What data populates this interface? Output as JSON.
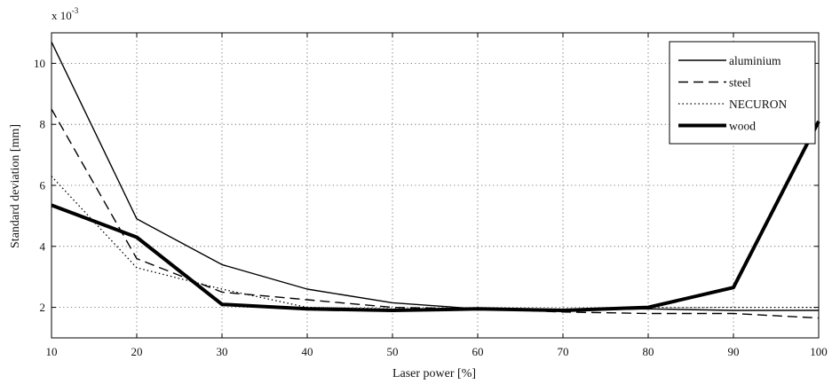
{
  "chart_data": {
    "type": "line",
    "xlabel": "Laser power [%]",
    "ylabel": "Standard deviation [mm]",
    "y_exponent_label": "x 10",
    "y_exponent_power": "-3",
    "xlim": [
      10,
      100
    ],
    "ylim": [
      1,
      11
    ],
    "x_ticks": [
      10,
      20,
      30,
      40,
      50,
      60,
      70,
      80,
      90,
      100
    ],
    "y_ticks": [
      2,
      4,
      6,
      8,
      10
    ],
    "grid": true,
    "legend_position": "top-right",
    "x": [
      10,
      20,
      30,
      40,
      50,
      60,
      70,
      80,
      90,
      100
    ],
    "series": [
      {
        "name": "aluminium",
        "style": "solid",
        "weight": "thin",
        "values": [
          10.7,
          4.9,
          3.4,
          2.6,
          2.15,
          1.95,
          1.9,
          1.95,
          1.9,
          1.9
        ]
      },
      {
        "name": "steel",
        "style": "dashed",
        "weight": "thin",
        "values": [
          8.5,
          3.6,
          2.5,
          2.25,
          2.0,
          1.95,
          1.85,
          1.8,
          1.8,
          1.65
        ]
      },
      {
        "name": "NECURON",
        "style": "dotted",
        "weight": "thin",
        "values": [
          6.3,
          3.3,
          2.6,
          2.0,
          1.95,
          1.95,
          1.95,
          2.0,
          2.0,
          2.0
        ]
      },
      {
        "name": "wood",
        "style": "solid",
        "weight": "thick",
        "values": [
          5.35,
          4.3,
          2.1,
          1.95,
          1.9,
          1.95,
          1.9,
          2.0,
          2.65,
          8.1
        ]
      }
    ],
    "colors": {
      "lines": "#000000",
      "grid": "#555555",
      "background": "#ffffff"
    }
  }
}
